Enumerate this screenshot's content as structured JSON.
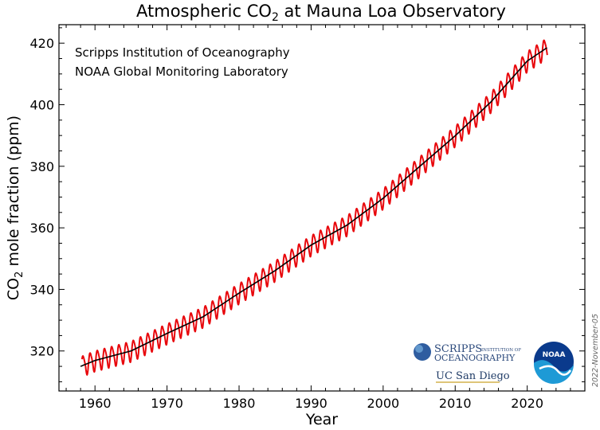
{
  "chart_data": {
    "type": "line",
    "title_main": "Atmospheric CO",
    "title_sub": "2",
    "title_rest": " at Mauna Loa Observatory",
    "xlabel": "Year",
    "ylabel_main": "CO",
    "ylabel_sub": "2",
    "ylabel_rest": " mole fraction (ppm)",
    "xlim": [
      1955,
      2028
    ],
    "ylim": [
      307,
      426
    ],
    "xticks": [
      1960,
      1970,
      1980,
      1990,
      2000,
      2010,
      2020
    ],
    "yticks": [
      320,
      340,
      360,
      380,
      400,
      420
    ],
    "grid": false,
    "series": [
      {
        "kind": "monthly",
        "color": "#e8070c",
        "seasonal_amplitude": 3.2,
        "x_range": [
          1958.2,
          2022.8
        ]
      },
      {
        "kind": "trend",
        "color": "#000000",
        "x": [
          1958,
          1960,
          1965,
          1970,
          1975,
          1980,
          1985,
          1990,
          1995,
          2000,
          2005,
          2010,
          2015,
          2020,
          2022.8
        ],
        "y": [
          315.0,
          316.9,
          320.0,
          325.7,
          331.1,
          338.8,
          346.1,
          354.4,
          360.9,
          369.6,
          379.8,
          389.9,
          401.0,
          414.2,
          418.6
        ]
      }
    ]
  },
  "credits": {
    "line1": "Scripps Institution of Oceanography",
    "line2": "NOAA Global Monitoring Laboratory"
  },
  "logos": {
    "scripps_main": "SCRIPPS",
    "scripps_small": "INSTITUTION OF",
    "scripps_sub": "OCEANOGRAPHY",
    "ucsd": "UC San Diego",
    "noaa": "NOAA"
  },
  "datestamp": "2022-November-05"
}
